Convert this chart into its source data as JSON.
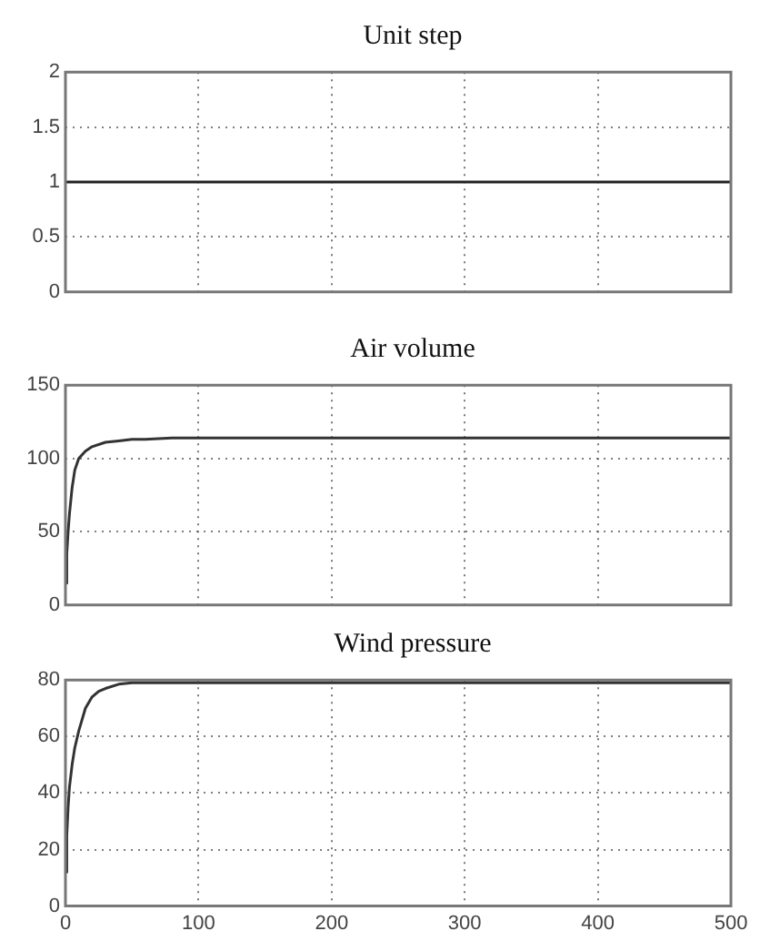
{
  "chart_data": [
    {
      "type": "line",
      "title": "Unit step",
      "x": [
        0,
        500
      ],
      "values": [
        1,
        1
      ],
      "color": "#222222",
      "xlim": [
        0,
        500
      ],
      "xticks": [
        0,
        100,
        200,
        300,
        400,
        500
      ],
      "ylim": [
        0,
        2
      ],
      "yticks": [
        0,
        0.5,
        1,
        1.5,
        2
      ],
      "grid": true,
      "tick_labels": "y"
    },
    {
      "type": "line",
      "title": "Air volume",
      "x": [
        0,
        1,
        2,
        3,
        5,
        7,
        10,
        15,
        20,
        30,
        40,
        50,
        60,
        80,
        100,
        500
      ],
      "values": [
        15,
        35,
        50,
        62,
        80,
        92,
        100,
        105,
        108,
        111,
        112,
        113,
        113,
        114,
        114,
        114
      ],
      "color": "#333333",
      "xlim": [
        0,
        500
      ],
      "xticks": [
        0,
        100,
        200,
        300,
        400,
        500
      ],
      "ylim": [
        0,
        150
      ],
      "yticks": [
        0,
        50,
        100,
        150
      ],
      "grid": true,
      "tick_labels": "y"
    },
    {
      "type": "line",
      "title": "Wind pressure",
      "x": [
        0,
        1,
        2,
        3,
        5,
        7,
        10,
        15,
        20,
        25,
        30,
        40,
        50,
        60,
        500
      ],
      "values": [
        12,
        25,
        35,
        42,
        50,
        56,
        62,
        70,
        74,
        76,
        77,
        78.5,
        79,
        79,
        79
      ],
      "color": "#333333",
      "xlim": [
        0,
        500
      ],
      "xticks": [
        0,
        100,
        200,
        300,
        400,
        500
      ],
      "ylim": [
        0,
        80
      ],
      "yticks": [
        0,
        20,
        40,
        60,
        80
      ],
      "grid": true
    }
  ]
}
